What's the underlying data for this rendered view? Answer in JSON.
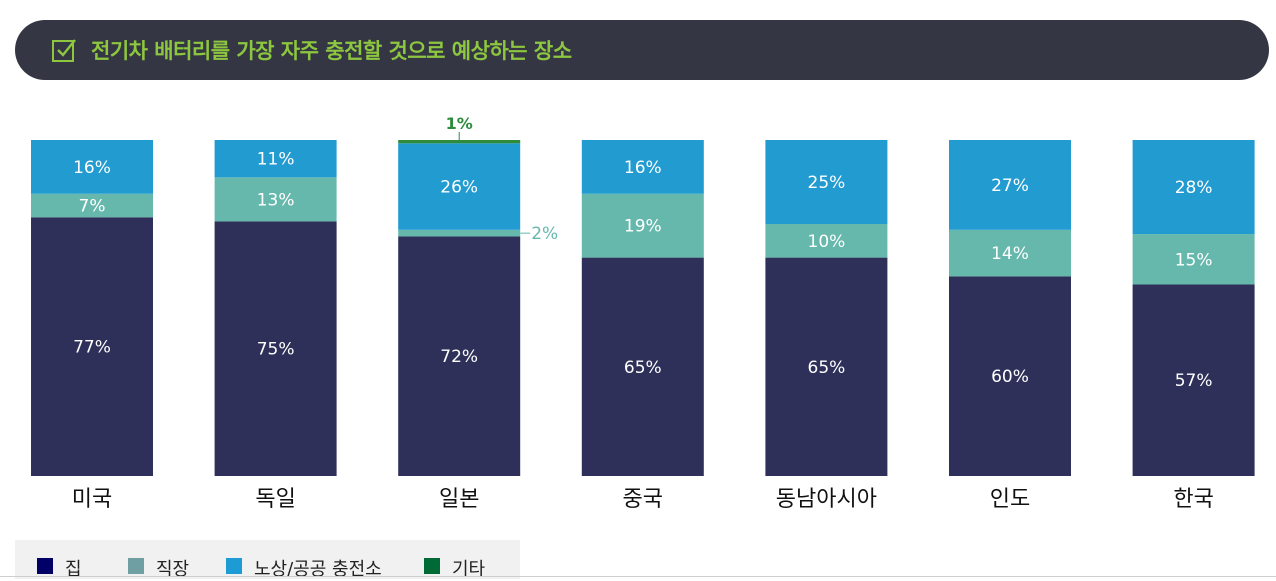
{
  "header": {
    "title": "전기차 배터리를 가장 자주 충전할 것으로 예상하는 장소",
    "icon": "checkbox-icon",
    "title_color": "#8dc63f",
    "background": "#343743"
  },
  "chart_data": {
    "type": "bar",
    "stacked": true,
    "categories": [
      "미국",
      "독일",
      "일본",
      "중국",
      "동남아시아",
      "인도",
      "한국"
    ],
    "series": [
      {
        "name": "집",
        "color": "#2e3059",
        "legend_color": "#000066",
        "values": [
          77,
          75,
          72,
          65,
          65,
          60,
          57
        ]
      },
      {
        "name": "직장",
        "color": "#66b8ac",
        "legend_color": "#6f9fa2",
        "values": [
          7,
          13,
          2,
          19,
          10,
          14,
          15
        ]
      },
      {
        "name": "노상/공공 충전소",
        "color": "#229bd1",
        "legend_color": "#1d9bd4",
        "values": [
          16,
          11,
          26,
          16,
          25,
          27,
          28
        ]
      },
      {
        "name": "기타",
        "color": "#2e8b3c",
        "legend_color": "#006a36",
        "values": [
          0,
          0,
          1,
          0,
          0,
          0,
          0
        ]
      }
    ],
    "value_labels": [
      [
        "77%",
        "7%",
        "16%",
        ""
      ],
      [
        "75%",
        "13%",
        "11%",
        ""
      ],
      [
        "72%",
        "2%",
        "26%",
        "1%"
      ],
      [
        "65%",
        "19%",
        "16%",
        ""
      ],
      [
        "65%",
        "10%",
        "25%",
        ""
      ],
      [
        "60%",
        "14%",
        "27%",
        ""
      ],
      [
        "57%",
        "15%",
        "28%",
        ""
      ]
    ],
    "ylim": [
      0,
      100
    ],
    "grid": false,
    "legend_position": "bottom-left"
  }
}
